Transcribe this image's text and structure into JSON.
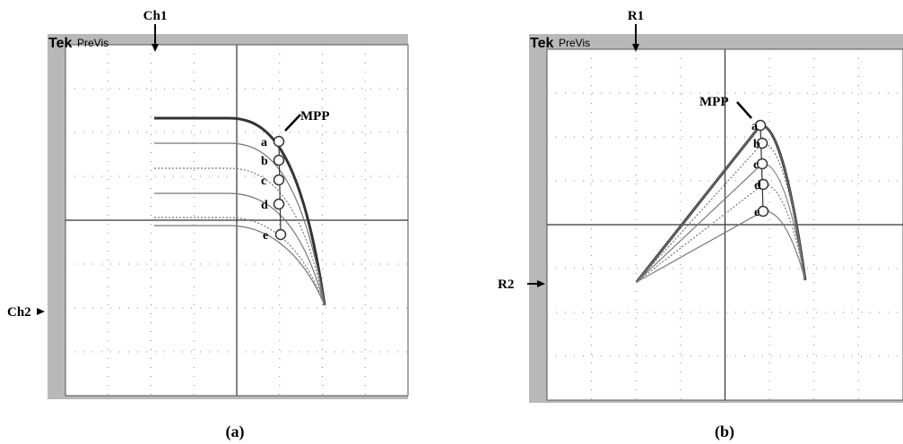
{
  "panels": [
    {
      "caption": "(a)",
      "brand": "Tek",
      "mode": "PreVis",
      "top_marker": "Ch1",
      "side_marker": "Ch2",
      "mpp": "MPP",
      "points": [
        "a",
        "b",
        "c",
        "d",
        "e"
      ]
    },
    {
      "caption": "(b)",
      "brand": "Tek",
      "mode": "PreVis",
      "top_marker": "R1",
      "side_marker": "R2",
      "mpp": "MPP",
      "points": [
        "a",
        "b",
        "c",
        "d",
        "e"
      ]
    }
  ]
}
